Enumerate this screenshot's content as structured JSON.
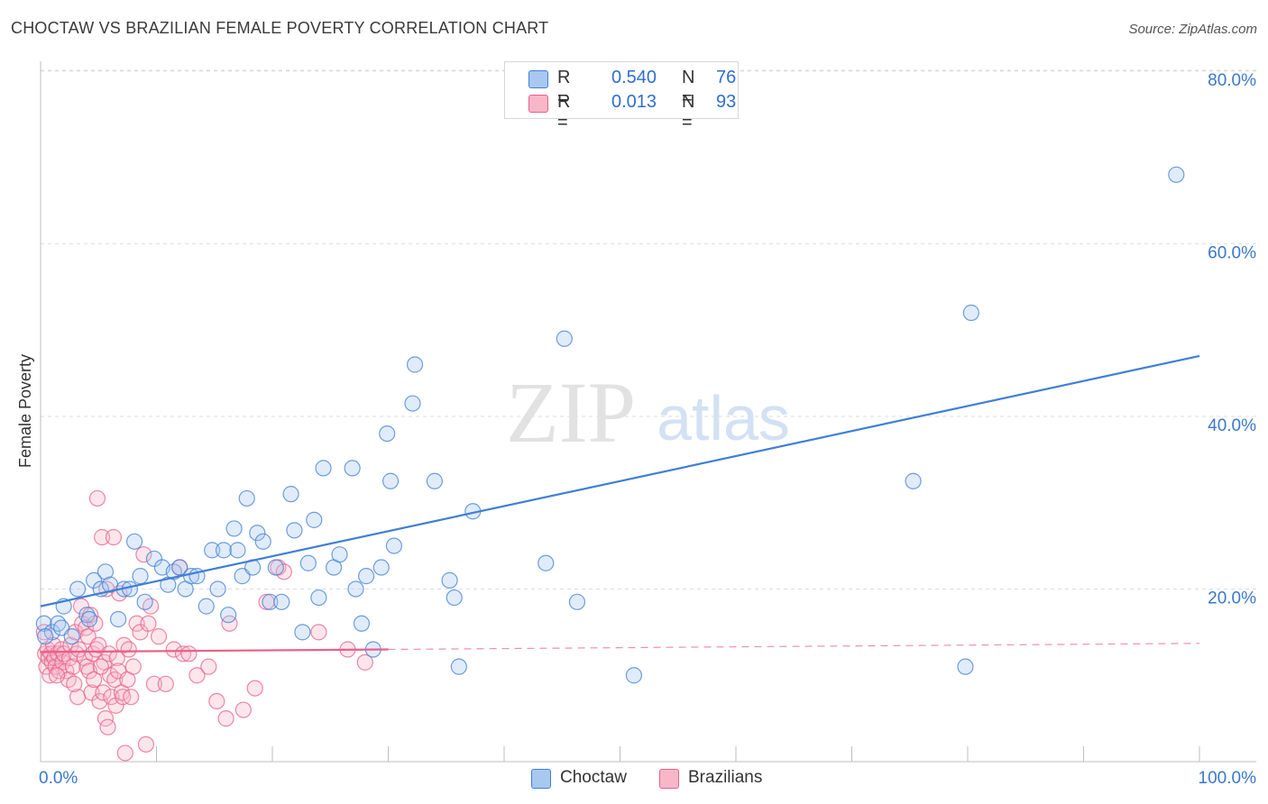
{
  "title": "CHOCTAW VS BRAZILIAN FEMALE POVERTY CORRELATION CHART",
  "source": "Source: ZipAtlas.com",
  "watermark": {
    "zip": "ZIP",
    "atlas": "atlas"
  },
  "legend": {
    "rows": [
      {
        "r_label": "R =",
        "r_value": "0.540",
        "n_label": "N =",
        "n_value": "76",
        "color": "#a8c8f0"
      },
      {
        "r_label": "R =",
        "r_value": "0.013",
        "n_label": "N =",
        "n_value": "93",
        "color": "#f7b7c9"
      }
    ]
  },
  "bottom_legend": [
    {
      "label": "Choctaw",
      "color": "#a8c8f0"
    },
    {
      "label": "Brazilians",
      "color": "#f7b7c9"
    }
  ],
  "chart_data": {
    "type": "scatter",
    "title": "CHOCTAW VS BRAZILIAN FEMALE POVERTY CORRELATION CHART",
    "xlabel": "",
    "ylabel": "Female Poverty",
    "xlim": [
      0,
      100
    ],
    "ylim": [
      0,
      85
    ],
    "x_tick_labels": [
      "0.0%",
      "100.0%"
    ],
    "y_ticks": [
      20,
      40,
      60,
      80
    ],
    "y_tick_labels": [
      "20.0%",
      "40.0%",
      "60.0%",
      "80.0%"
    ],
    "grid": true,
    "legend_position": "top-center",
    "colors": {
      "choctaw": "#3f7fd6",
      "brazilians": "#e8608a",
      "axis_label": "#3b78c9"
    },
    "series": [
      {
        "name": "Choctaw",
        "color": "#3f7fd6",
        "points": [
          [
            0.3,
            16.0
          ],
          [
            1.0,
            15.0
          ],
          [
            1.5,
            16.0
          ],
          [
            1.8,
            15.5
          ],
          [
            2.0,
            18.0
          ],
          [
            3.2,
            20.0
          ],
          [
            4.0,
            17.0
          ],
          [
            4.2,
            16.5
          ],
          [
            4.6,
            21.0
          ],
          [
            5.2,
            20.0
          ],
          [
            5.6,
            22.0
          ],
          [
            6.0,
            20.5
          ],
          [
            6.7,
            16.5
          ],
          [
            7.2,
            20.0
          ],
          [
            7.7,
            20.0
          ],
          [
            8.1,
            25.5
          ],
          [
            8.6,
            21.5
          ],
          [
            9.0,
            18.5
          ],
          [
            9.8,
            23.5
          ],
          [
            10.5,
            22.5
          ],
          [
            11.0,
            20.5
          ],
          [
            11.5,
            22.0
          ],
          [
            12.0,
            22.5
          ],
          [
            12.5,
            20.0
          ],
          [
            13.0,
            21.5
          ],
          [
            13.5,
            21.5
          ],
          [
            14.3,
            18.0
          ],
          [
            14.8,
            24.5
          ],
          [
            15.3,
            20.0
          ],
          [
            15.8,
            24.5
          ],
          [
            16.2,
            17.0
          ],
          [
            16.7,
            27.0
          ],
          [
            17.0,
            24.5
          ],
          [
            17.4,
            21.5
          ],
          [
            17.8,
            30.5
          ],
          [
            18.3,
            22.5
          ],
          [
            18.7,
            26.5
          ],
          [
            19.2,
            25.5
          ],
          [
            19.8,
            18.5
          ],
          [
            20.3,
            22.5
          ],
          [
            20.8,
            18.5
          ],
          [
            21.6,
            31.0
          ],
          [
            21.9,
            26.8
          ],
          [
            22.6,
            15.0
          ],
          [
            23.1,
            23.0
          ],
          [
            23.6,
            28.0
          ],
          [
            24.0,
            19.0
          ],
          [
            24.4,
            34.0
          ],
          [
            25.3,
            22.5
          ],
          [
            25.8,
            24.0
          ],
          [
            26.9,
            34.0
          ],
          [
            27.2,
            20.0
          ],
          [
            27.7,
            16.0
          ],
          [
            28.1,
            21.5
          ],
          [
            28.7,
            13.0
          ],
          [
            29.4,
            22.5
          ],
          [
            29.9,
            38.0
          ],
          [
            30.2,
            32.5
          ],
          [
            30.5,
            25.0
          ],
          [
            32.1,
            41.5
          ],
          [
            32.3,
            46.0
          ],
          [
            34.0,
            32.5
          ],
          [
            35.3,
            21.0
          ],
          [
            35.7,
            19.0
          ],
          [
            36.1,
            11.0
          ],
          [
            37.3,
            29.0
          ],
          [
            43.6,
            23.0
          ],
          [
            45.2,
            49.0
          ],
          [
            46.3,
            18.5
          ],
          [
            51.2,
            10.0
          ],
          [
            75.3,
            32.5
          ],
          [
            79.8,
            11.0
          ],
          [
            80.3,
            52.0
          ],
          [
            98.0,
            68.0
          ],
          [
            0.4,
            14.5
          ],
          [
            2.7,
            14.5
          ]
        ],
        "trend": {
          "x": [
            0,
            100
          ],
          "y": [
            18.0,
            47.0
          ]
        }
      },
      {
        "name": "Brazilians",
        "color": "#e8608a",
        "points": [
          [
            0.3,
            15.0
          ],
          [
            0.4,
            12.5
          ],
          [
            0.5,
            11.0
          ],
          [
            0.6,
            13.0
          ],
          [
            0.7,
            12.0
          ],
          [
            0.8,
            10.0
          ],
          [
            0.9,
            12.5
          ],
          [
            1.0,
            11.5
          ],
          [
            1.1,
            13.5
          ],
          [
            1.2,
            12.0
          ],
          [
            1.3,
            11.0
          ],
          [
            1.5,
            12.5
          ],
          [
            1.6,
            10.5
          ],
          [
            1.8,
            13.0
          ],
          [
            1.9,
            11.5
          ],
          [
            2.0,
            12.5
          ],
          [
            2.2,
            10.5
          ],
          [
            2.4,
            9.5
          ],
          [
            2.5,
            12.0
          ],
          [
            2.6,
            13.5
          ],
          [
            2.8,
            11.0
          ],
          [
            3.0,
            15.0
          ],
          [
            3.1,
            12.5
          ],
          [
            3.2,
            7.5
          ],
          [
            3.3,
            13.0
          ],
          [
            3.5,
            18.0
          ],
          [
            3.6,
            16.0
          ],
          [
            3.8,
            12.0
          ],
          [
            3.9,
            15.5
          ],
          [
            4.0,
            11.0
          ],
          [
            4.1,
            14.5
          ],
          [
            4.2,
            10.5
          ],
          [
            4.3,
            17.0
          ],
          [
            4.4,
            8.0
          ],
          [
            4.5,
            12.5
          ],
          [
            4.6,
            9.5
          ],
          [
            4.7,
            16.0
          ],
          [
            4.8,
            13.0
          ],
          [
            4.9,
            30.5
          ],
          [
            5.0,
            13.5
          ],
          [
            5.1,
            7.0
          ],
          [
            5.3,
            26.0
          ],
          [
            5.4,
            8.0
          ],
          [
            5.5,
            11.5
          ],
          [
            5.6,
            5.0
          ],
          [
            5.7,
            20.0
          ],
          [
            5.8,
            4.0
          ],
          [
            5.9,
            12.5
          ],
          [
            6.0,
            10.0
          ],
          [
            6.1,
            7.5
          ],
          [
            6.3,
            26.0
          ],
          [
            6.4,
            9.5
          ],
          [
            6.5,
            6.5
          ],
          [
            6.6,
            12.0
          ],
          [
            6.7,
            10.5
          ],
          [
            6.8,
            19.5
          ],
          [
            7.0,
            8.0
          ],
          [
            7.1,
            7.5
          ],
          [
            7.2,
            13.5
          ],
          [
            7.3,
            1.0
          ],
          [
            7.5,
            9.5
          ],
          [
            7.6,
            13.0
          ],
          [
            7.8,
            7.5
          ],
          [
            8.0,
            11.0
          ],
          [
            8.3,
            16.0
          ],
          [
            8.6,
            15.0
          ],
          [
            8.9,
            24.0
          ],
          [
            9.1,
            2.0
          ],
          [
            9.3,
            16.0
          ],
          [
            9.5,
            18.0
          ],
          [
            9.8,
            9.0
          ],
          [
            10.2,
            14.5
          ],
          [
            10.8,
            9.0
          ],
          [
            11.5,
            13.0
          ],
          [
            12.0,
            22.5
          ],
          [
            12.3,
            12.5
          ],
          [
            12.8,
            12.5
          ],
          [
            13.5,
            10.0
          ],
          [
            14.5,
            11.0
          ],
          [
            15.2,
            7.0
          ],
          [
            16.0,
            5.0
          ],
          [
            16.3,
            16.0
          ],
          [
            17.5,
            6.0
          ],
          [
            18.5,
            8.5
          ],
          [
            19.5,
            18.5
          ],
          [
            20.5,
            22.5
          ],
          [
            21.0,
            22.0
          ],
          [
            24.0,
            15.0
          ],
          [
            26.5,
            13.0
          ],
          [
            28.0,
            11.5
          ],
          [
            1.4,
            10.0
          ],
          [
            2.9,
            9.0
          ],
          [
            5.2,
            11.0
          ]
        ],
        "trend": {
          "x": [
            0,
            30
          ],
          "y": [
            12.7,
            13.0
          ]
        },
        "trend_extension": {
          "x": [
            30,
            100
          ],
          "y": [
            13.0,
            13.7
          ]
        }
      }
    ]
  }
}
